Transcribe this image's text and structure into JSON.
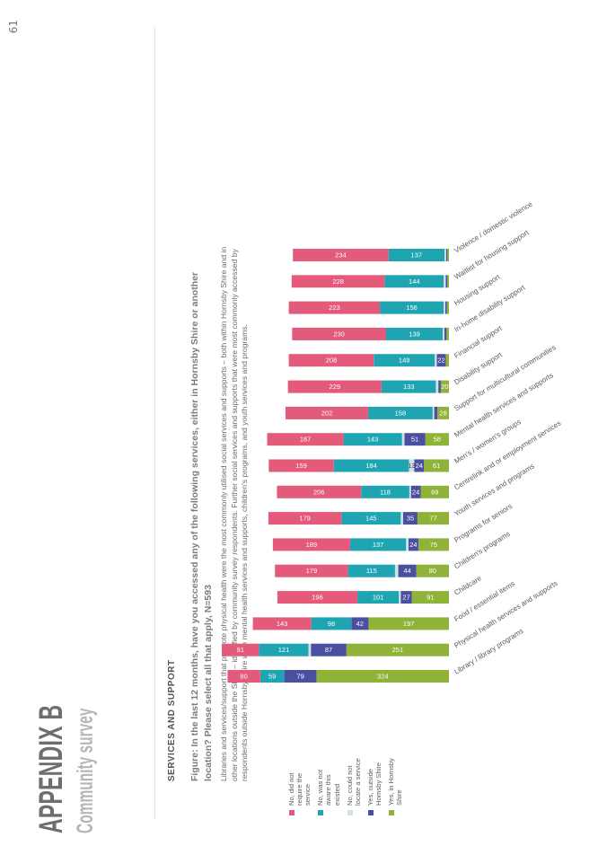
{
  "page_number": "61",
  "header": {
    "appendix": "APPENDIX B",
    "subtitle": "Community survey"
  },
  "section_title": "SERVICES AND SUPPORT",
  "figure_title": "Figure: In the last 12 months, have you accessed any of the following services, either in Hornsby Shire or another location? Please select all that apply, N=593",
  "body_text": "Libraries and services/support that promote physical health were the most commonly utilised social services and supports – both within Hornsby Shire and in other locations outside the Shire – identified by community survey respondents. Further social services and supports that were most commonly accessed by respondents outside Hornsby Shire were mental health services and supports, children's programs, and youth services and programs.",
  "colors": {
    "no_not_require": "#e35a7a",
    "no_not_aware": "#1fa5b1",
    "no_could_not_locate": "#cfe1e3",
    "yes_outside": "#4a4f9f",
    "yes_in": "#8fb339"
  },
  "chart_data": {
    "type": "bar",
    "orientation": "horizontal-stacked",
    "legend_placement": "left",
    "categories": [
      "Library / library programs",
      "Physical health services and supports",
      "Food / essential items",
      "Childcare",
      "Children's programs",
      "Programs for seniors",
      "Youth services and programs",
      "Centrelink and or employment services",
      "Men's / women's groups",
      "Mental health services and supports",
      "Support for multicultural communities",
      "Disability support",
      "Financial support",
      "In-home disability support",
      "Housing support",
      "Waitlist for housing support",
      "Violence / domestic violence"
    ],
    "series": [
      {
        "name": "Yes, in Hornsby Shire",
        "color": "#8fb339",
        "values": [
          324,
          251,
          197,
          91,
          80,
          75,
          77,
          69,
          61,
          58,
          28,
          20,
          8,
          6,
          5,
          4,
          4
        ]
      },
      {
        "name": "Yes, outside Hornsby Shire",
        "color": "#4a4f9f",
        "values": [
          79,
          87,
          42,
          27,
          44,
          24,
          35,
          24,
          24,
          51,
          8,
          6,
          22,
          5,
          4,
          4,
          3
        ]
      },
      {
        "name": "No, could not locate a service",
        "color": "#cfe1e3",
        "values": [
          0,
          6,
          0,
          5,
          8,
          6,
          6,
          4,
          13,
          6,
          4,
          6,
          5,
          4,
          4,
          5,
          4
        ]
      },
      {
        "name": "No, was not aware this existed",
        "color": "#1fa5b1",
        "values": [
          59,
          121,
          98,
          101,
          115,
          137,
          145,
          118,
          184,
          143,
          158,
          133,
          149,
          139,
          156,
          144,
          137
        ]
      },
      {
        "name": "No, did not require the service",
        "color": "#e35a7a",
        "values": [
          80,
          91,
          143,
          196,
          179,
          189,
          179,
          206,
          159,
          187,
          202,
          229,
          208,
          230,
          223,
          228,
          234
        ]
      }
    ],
    "labels": {
      "yes_in": [
        "324",
        "251",
        "197",
        "91",
        "80",
        "75",
        "77",
        "69",
        "61",
        "58",
        "28",
        "20",
        "",
        "",
        "",
        "",
        ""
      ],
      "yes_out": [
        "79",
        "87",
        "42",
        "27",
        "44",
        "24",
        "35",
        "24",
        "24",
        "51",
        "",
        "",
        "22",
        "",
        "",
        "",
        ""
      ],
      "not_locate": [
        "",
        "",
        "",
        "",
        "",
        "",
        "",
        "",
        "13",
        "",
        "",
        "",
        "",
        "",
        "",
        "",
        ""
      ],
      "not_aware": [
        "59",
        "121",
        "98",
        "101",
        "115",
        "137",
        "145",
        "118",
        "184",
        "143",
        "158",
        "133",
        "149",
        "139",
        "156",
        "144",
        "137"
      ],
      "not_req": [
        "80",
        "91",
        "143",
        "196",
        "179",
        "189",
        "179",
        "206",
        "159",
        "187",
        "202",
        "229",
        "208",
        "230",
        "223",
        "228",
        "234"
      ]
    }
  }
}
